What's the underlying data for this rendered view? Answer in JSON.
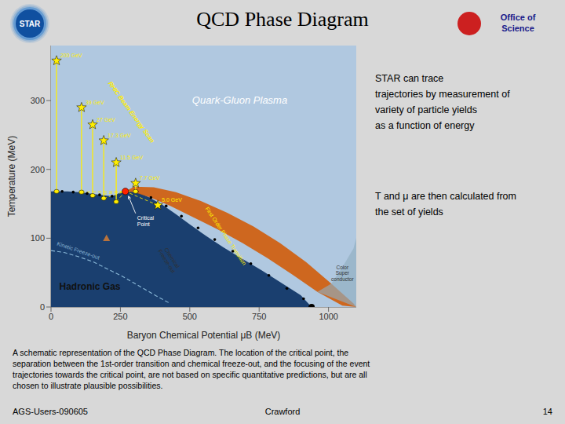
{
  "chart_data": {
    "type": "scatter",
    "title": "QCD Phase Diagram",
    "xlabel": "Baryon Chemical Potential μB (MeV)",
    "ylabel": "Temperature (MeV)",
    "xlim": [
      0,
      1100
    ],
    "ylim": [
      0,
      380
    ],
    "xticks": [
      0,
      250,
      500,
      750,
      1000
    ],
    "yticks": [
      0,
      100,
      200,
      300
    ],
    "color": "#1a3f6f",
    "background": "#d8d8d8",
    "series": [
      {
        "type": "area",
        "color": "#b0c8e0",
        "x": [
          0,
          30,
          60,
          100,
          140,
          180,
          220,
          260,
          268,
          305,
          350,
          400,
          450,
          500,
          560,
          620,
          690,
          760,
          830,
          900,
          939
        ],
        "values": [
          168,
          168,
          168,
          167,
          165,
          163,
          161,
          168,
          168,
          168,
          160,
          149,
          135,
          120,
          103,
          87,
          70,
          53,
          35,
          17,
          0
        ]
      },
      {
        "type": "band",
        "color": "#d06010",
        "x": [
          268,
          300,
          360,
          430,
          510,
          600,
          690,
          780,
          870,
          960,
          1050,
          1100
        ],
        "values": [
          168,
          167,
          159,
          147,
          131,
          113,
          93,
          71,
          47,
          22,
          2,
          0
        ],
        "x_outer": [
          268,
          300,
          370,
          450,
          540,
          635,
          730,
          825,
          920,
          1010,
          1090,
          1100
        ],
        "values_outer": [
          168,
          175,
          174,
          167,
          154,
          137,
          117,
          93,
          65,
          34,
          5,
          0
        ]
      },
      {
        "type": "polygon",
        "color": "#90aec0",
        "x": [
          1010,
          1050,
          1090,
          1100,
          1100,
          960,
          1010
        ],
        "values": [
          34,
          58,
          85,
          100,
          0,
          22,
          34
        ]
      },
      {
        "type": "line",
        "line_style": "dashed",
        "color": "#8ab8d8",
        "x": [
          0,
          50,
          100,
          150,
          200,
          260,
          320,
          380,
          430
        ],
        "values": [
          82,
          79,
          73,
          66,
          56,
          44,
          30,
          16,
          5
        ]
      },
      {
        "type": "scatter",
        "marker": "dot",
        "color": "#000000",
        "x": [
          40,
          80,
          130,
          175,
          220,
          310,
          360,
          415,
          470,
          530,
          590,
          655,
          720,
          785,
          850,
          910
        ],
        "values": [
          168,
          167,
          165,
          163,
          161,
          168,
          159,
          147,
          132,
          115,
          98,
          81,
          63,
          46,
          27,
          12
        ]
      },
      {
        "type": "scatter",
        "marker": "circle",
        "color": "#000000",
        "x": [
          939
        ],
        "values": [
          0
        ]
      },
      {
        "type": "scatter",
        "marker": "triangle",
        "color": "#e08030",
        "x": [
          200
        ],
        "values": [
          100
        ]
      },
      {
        "type": "trajectory",
        "color": "#ffee00",
        "x": [
          20,
          110,
          150,
          190,
          235,
          305,
          385
        ],
        "values": [
          358,
          290,
          265,
          242,
          210,
          180,
          148
        ],
        "freeze_x": [
          20,
          110,
          150,
          190,
          235,
          305,
          385
        ],
        "freeze_values": [
          168,
          167,
          162,
          158,
          153,
          168,
          148
        ],
        "labels": [
          "200 GeV",
          "39 GeV",
          "27 GeV",
          "17.3 GeV",
          "11.5 GeV",
          "7.7 GeV",
          "5.0 GeV"
        ],
        "to_critical": [
          false,
          true,
          true,
          true,
          true,
          true,
          true
        ]
      }
    ],
    "critical_point": {
      "x": 268,
      "value": 168,
      "color": "#ff2200",
      "label": "Critical\nPoint",
      "label_color": "#ffffff"
    },
    "annotations": [
      {
        "text": "Kinetic Freeze-out",
        "color": "#8ab8d8"
      },
      {
        "text": "Chemical\nFreeze-out",
        "color": "#303030"
      },
      {
        "text": "First Order Phase Transition",
        "color": "#ffee00"
      },
      {
        "text": "Color\nSuper\nconductor",
        "color": "#333333"
      },
      {
        "text": "RHIC Beam Energy Scan",
        "color": "#ffee00"
      },
      {
        "text": "Quark-Gluon Plasma",
        "color": "#ffffff"
      },
      {
        "text": "Hadronic Gas",
        "color": "#111111"
      }
    ],
    "side_text": [
      "STAR can trace\ntrajectories by measurement of\nvariety of particle yields\nas a function of energy",
      "T and μ are then calculated from\nthe set of yields"
    ],
    "caption": [
      "A schematic representation of the QCD Phase Diagram. The location of the critical point, the",
      "separation between the 1st-order transition and chemical freeze-out, and the focusing of the event",
      "trajectories towards the critical point, are not based on specific quantitative predictions, but are all",
      "chosen to illustrate plausible possibilities."
    ],
    "footer": [
      "AGS-Users-090605",
      "Crawford",
      "14"
    ],
    "logos": [
      "STAR",
      "Office of\nScience"
    ]
  }
}
